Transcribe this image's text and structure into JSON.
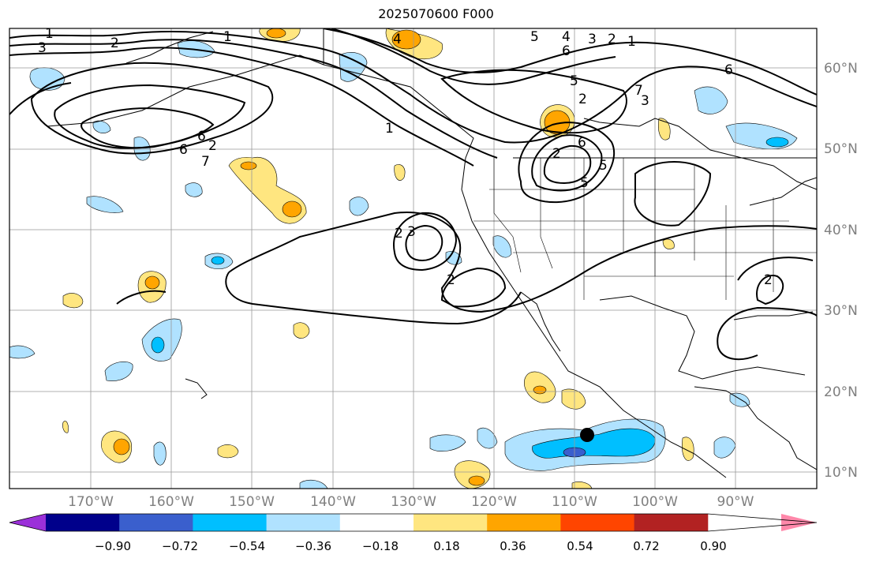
{
  "title": "2025070600 F000",
  "lat_labels": [
    "60°N",
    "50°N",
    "40°N",
    "30°N",
    "20°N",
    "10°N"
  ],
  "lon_labels": [
    "170°W",
    "160°W",
    "150°W",
    "140°W",
    "130°W",
    "120°W",
    "110°W",
    "100°W",
    "90°W"
  ],
  "colorbar": {
    "colors": [
      "#9b30d9",
      "#00008b",
      "#3a5fcd",
      "#00bfff",
      "#b0e2ff",
      "#ffffff",
      "#ffe680",
      "#ffa500",
      "#ff4500",
      "#b22222",
      "#ff88aa"
    ],
    "ticks": [
      "−0.90",
      "−0.72",
      "−0.54",
      "−0.36",
      "−0.18",
      "0.18",
      "0.36",
      "0.54",
      "0.72",
      "0.90"
    ]
  },
  "contour_labels": [
    "1",
    "2",
    "3",
    "1",
    "2",
    "4",
    "5",
    "4",
    "3",
    "2",
    "1",
    "6",
    "6",
    "5",
    "6",
    "2",
    "3",
    "6",
    "5",
    "7",
    "1",
    "2",
    "6",
    "5",
    "7",
    "3",
    "2",
    "2",
    "2"
  ],
  "marker": "storm-position-marker"
}
